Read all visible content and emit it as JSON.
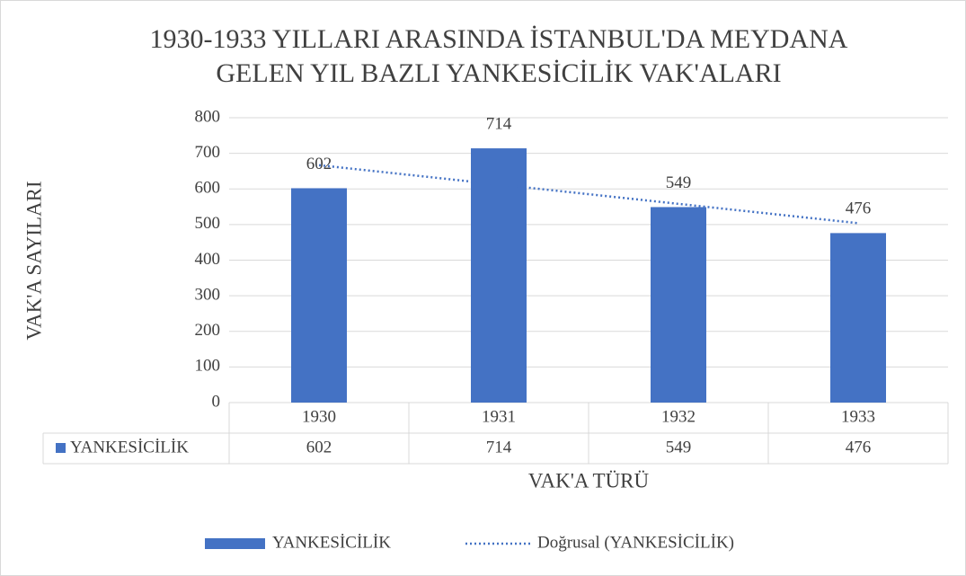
{
  "chart_data": {
    "type": "bar",
    "title": [
      "1930-1933 YILLARI ARASINDA İSTANBUL'DA MEYDANA",
      "GELEN YIL BAZLI YANKESİCİLİK VAK'ALARI"
    ],
    "x_label": "VAK'A TÜRÜ",
    "y_label": "VAK'A SAYILARI",
    "categories": [
      "1930",
      "1931",
      "1932",
      "1933"
    ],
    "series": [
      {
        "name": "YANKESİCİLİK",
        "color": "#4472c4",
        "values": [
          602,
          714,
          549,
          476
        ]
      }
    ],
    "trendline": {
      "name": "Doğrusal (YANKESİCİLİK)",
      "kind": "linear",
      "color": "#4472c4"
    },
    "ylim": [
      0,
      800
    ],
    "yticks": [
      0,
      100,
      200,
      300,
      400,
      500,
      600,
      700,
      800
    ],
    "grid": true,
    "data_table": true,
    "legend": "bottom"
  }
}
